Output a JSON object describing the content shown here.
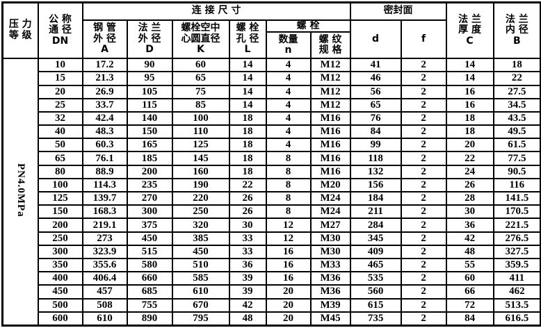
{
  "table": {
    "header": {
      "pressure_class": "压 力\n等 级",
      "nominal_diameter": "公 称\n通 径\nDN",
      "connection_dims": "连 接 尺 寸",
      "pipe_od": "钢 管\n外 径\nA",
      "flange_od": "法 兰\n外 径\nD",
      "bolt_circle": "螺栓空中\n心圆直径\nK",
      "bolt_hole": "螺 栓\n孔 径\nL",
      "bolt_group": "螺    栓",
      "bolt_qty": "数量\nn",
      "bolt_thread": "螺 纹\n规 格",
      "seal_face": "密封面",
      "seal_d": "d",
      "seal_f": "f",
      "flange_thickness": "法 兰\n厚 度\nC",
      "flange_id": "法 兰\n内 径\nB"
    },
    "pressure_value": "PN4.0MPa",
    "rows": [
      [
        "10",
        "17.2",
        "90",
        "60",
        "14",
        "4",
        "M12",
        "41",
        "2",
        "14",
        "18"
      ],
      [
        "15",
        "21.3",
        "95",
        "65",
        "14",
        "4",
        "M12",
        "46",
        "2",
        "14",
        "22"
      ],
      [
        "20",
        "26.9",
        "105",
        "75",
        "14",
        "4",
        "M12",
        "56",
        "2",
        "16",
        "27.5"
      ],
      [
        "25",
        "33.7",
        "115",
        "85",
        "14",
        "4",
        "M12",
        "65",
        "2",
        "16",
        "34.5"
      ],
      [
        "32",
        "42.4",
        "140",
        "100",
        "18",
        "4",
        "M16",
        "76",
        "2",
        "18",
        "43.5"
      ],
      [
        "40",
        "48.3",
        "150",
        "110",
        "18",
        "4",
        "M16",
        "84",
        "2",
        "18",
        "49.5"
      ],
      [
        "50",
        "60.3",
        "165",
        "125",
        "18",
        "4",
        "M16",
        "99",
        "2",
        "20",
        "61.5"
      ],
      [
        "65",
        "76.1",
        "185",
        "145",
        "18",
        "8",
        "M16",
        "118",
        "2",
        "22",
        "77.5"
      ],
      [
        "80",
        "88.9",
        "200",
        "160",
        "18",
        "8",
        "M16",
        "132",
        "2",
        "24",
        "90.5"
      ],
      [
        "100",
        "114.3",
        "235",
        "190",
        "22",
        "8",
        "M20",
        "156",
        "2",
        "26",
        "116"
      ],
      [
        "125",
        "139.7",
        "270",
        "220",
        "26",
        "8",
        "M24",
        "184",
        "2",
        "28",
        "141.5"
      ],
      [
        "150",
        "168.3",
        "300",
        "250",
        "26",
        "8",
        "M24",
        "211",
        "2",
        "30",
        "170.5"
      ],
      [
        "200",
        "219.1",
        "375",
        "320",
        "30",
        "12",
        "M27",
        "284",
        "2",
        "36",
        "221.5"
      ],
      [
        "250",
        "273",
        "450",
        "385",
        "33",
        "12",
        "M30",
        "345",
        "2",
        "42",
        "276.5"
      ],
      [
        "300",
        "323.9",
        "515",
        "450",
        "33",
        "16",
        "M30",
        "409",
        "2",
        "48",
        "327.5"
      ],
      [
        "350",
        "355.6",
        "580",
        "510",
        "36",
        "16",
        "M33",
        "465",
        "2",
        "55",
        "359.5"
      ],
      [
        "400",
        "406.4",
        "660",
        "585",
        "39",
        "16",
        "M36",
        "535",
        "2",
        "60",
        "411"
      ],
      [
        "450",
        "457",
        "685",
        "610",
        "39",
        "20",
        "M36",
        "560",
        "2",
        "66",
        "462"
      ],
      [
        "500",
        "508",
        "755",
        "670",
        "42",
        "20",
        "M39",
        "615",
        "2",
        "72",
        "513.5"
      ],
      [
        "600",
        "610",
        "890",
        "795",
        "48",
        "20",
        "M45",
        "735",
        "2",
        "84",
        "616.5"
      ]
    ]
  }
}
